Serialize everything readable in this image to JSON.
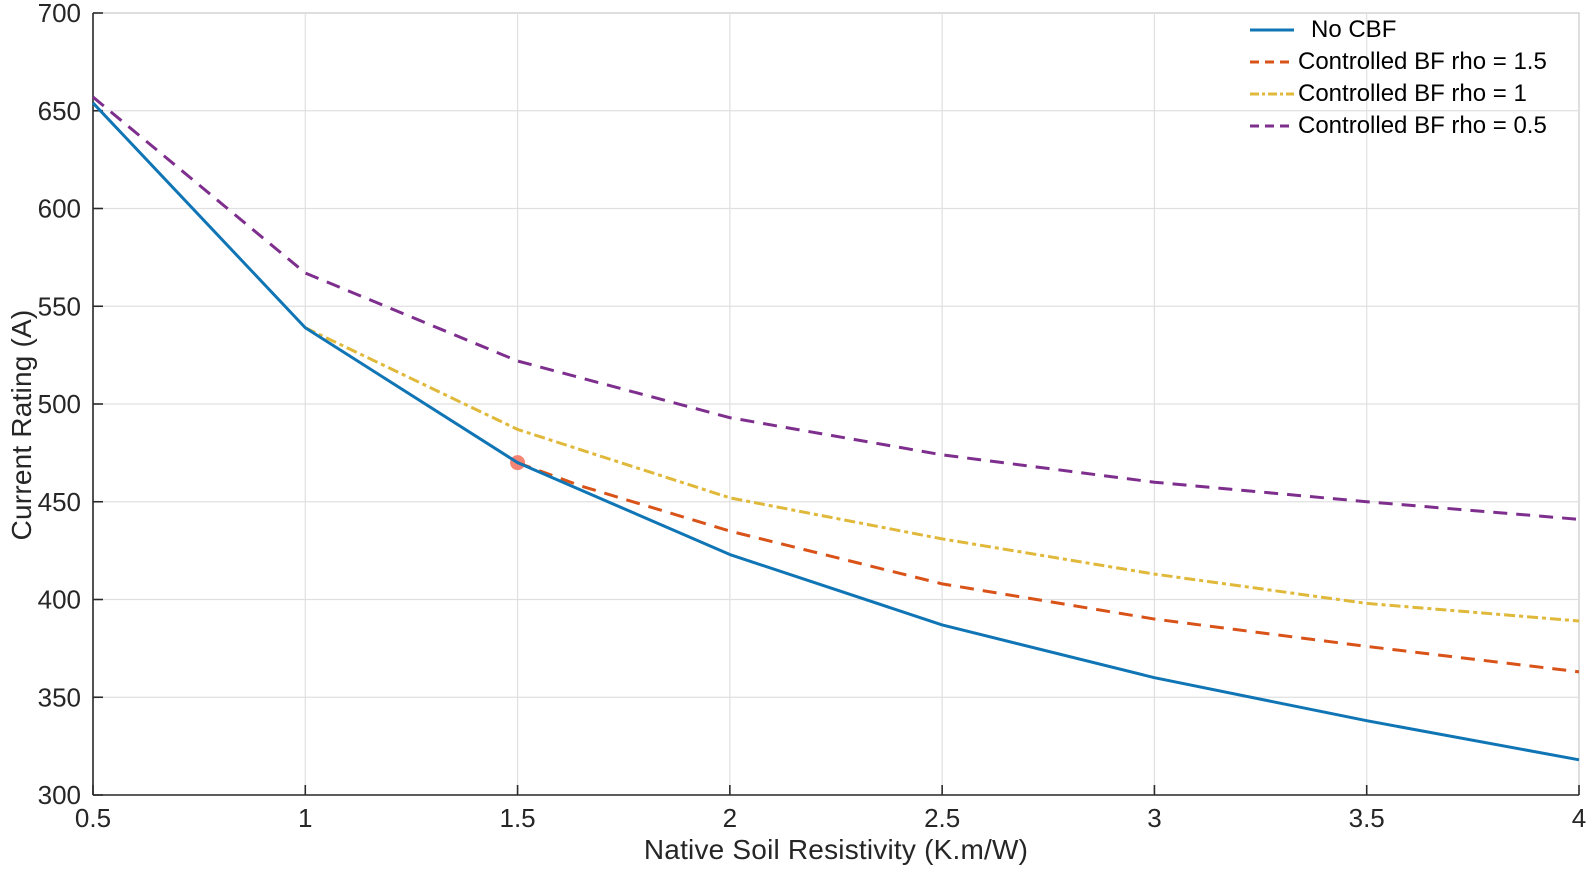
{
  "figure": {
    "background": "#ffffff",
    "grid_color": "#e0e0e0",
    "box_color": "#cccccc",
    "axis_color": "#2b2b2b",
    "text_color": "#262626"
  },
  "chart_data": {
    "type": "line",
    "title": "",
    "xlabel": "Native Soil Resistivity (K.m/W)",
    "ylabel": "Current Rating (A)",
    "xlim": [
      0.5,
      4
    ],
    "ylim": [
      300,
      700
    ],
    "x_ticks": [
      0.5,
      1,
      1.5,
      2,
      2.5,
      3,
      3.5,
      4
    ],
    "y_ticks": [
      300,
      350,
      400,
      450,
      500,
      550,
      600,
      650,
      700
    ],
    "grid": true,
    "legend_position": "top-right",
    "series": [
      {
        "name": "No CBF",
        "color": "#1075B5",
        "style": "solid",
        "x": [
          0.5,
          1,
          1.5,
          2,
          2.5,
          3,
          3.5,
          4
        ],
        "y": [
          654,
          539,
          470,
          423,
          387,
          360,
          338,
          318
        ]
      },
      {
        "name": "Controlled BF rho = 1.5",
        "color": "#D95319",
        "style": "dashed",
        "x": [
          1.5,
          1.65,
          2,
          2.5,
          3,
          3.5,
          4
        ],
        "y": [
          470,
          458,
          435,
          408,
          390,
          376,
          363
        ]
      },
      {
        "name": "Controlled BF rho = 1",
        "color": "#E0B83A",
        "style": "dash-dot",
        "x": [
          1,
          1.5,
          2,
          2.5,
          3,
          3.5,
          4
        ],
        "y": [
          539,
          487,
          452,
          431,
          413,
          398,
          389
        ]
      },
      {
        "name": "Controlled BF rho = 0.5",
        "color": "#7E2F8E",
        "style": "dashed",
        "x": [
          0.5,
          1,
          1.5,
          2,
          2.5,
          3,
          3.5,
          4
        ],
        "y": [
          657,
          567,
          522,
          493,
          474,
          460,
          450,
          441
        ]
      }
    ],
    "marker": {
      "x": 1.5,
      "y": 470,
      "color": "#F2705C"
    }
  }
}
